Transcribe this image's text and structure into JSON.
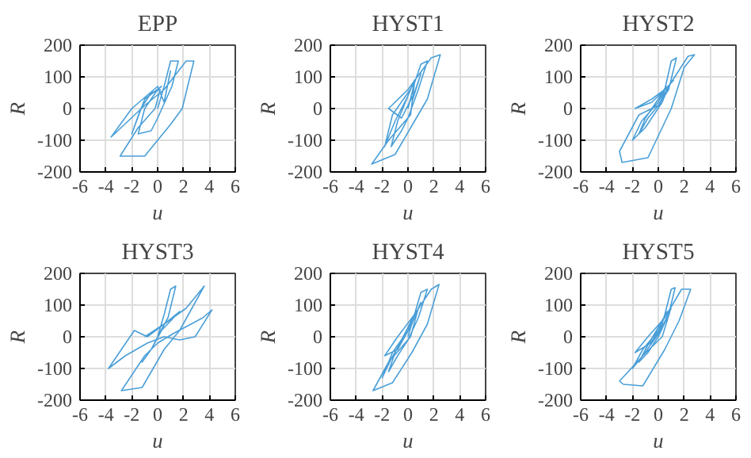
{
  "chart_data": [
    {
      "type": "line",
      "title": "EPP",
      "xlabel": "u",
      "ylabel": "R",
      "xlim": [
        -6,
        6
      ],
      "ylim": [
        -200,
        200
      ],
      "xticks": [
        -6,
        -4,
        -2,
        0,
        2,
        4,
        6
      ],
      "yticks": [
        -200,
        -100,
        0,
        100,
        200
      ],
      "grid": true,
      "series": [
        {
          "color": "#4a9fd8",
          "x": [
            0,
            0.5,
            1,
            1.6,
            1.1,
            0,
            -0.5,
            -1.5,
            -1,
            0,
            0.3,
            -1,
            -2,
            -1.3,
            -0.5,
            0.2,
            -0.2,
            -1.5,
            -2.9,
            -1,
            1,
            1.9,
            2.8,
            2.2,
            0.5,
            -1,
            -3.6,
            -2,
            0,
            0.5,
            1
          ],
          "values": [
            0,
            70,
            150,
            150,
            70,
            -30,
            -70,
            -80,
            0,
            60,
            70,
            30,
            -80,
            0,
            50,
            60,
            0,
            -60,
            -150,
            -150,
            -50,
            0,
            150,
            150,
            60,
            10,
            -90,
            0,
            70,
            20,
            120
          ]
        }
      ]
    },
    {
      "type": "line",
      "title": "HYST1",
      "xlabel": "u",
      "ylabel": "R",
      "xlim": [
        -6,
        6
      ],
      "ylim": [
        -200,
        200
      ],
      "xticks": [
        -6,
        -4,
        -2,
        0,
        2,
        4,
        6
      ],
      "yticks": [
        -200,
        -100,
        0,
        100,
        200
      ],
      "grid": true,
      "series": [
        {
          "color": "#4a9fd8",
          "x": [
            0,
            0.5,
            1,
            1.5,
            0.8,
            0,
            -0.5,
            -1.3,
            -0.8,
            0,
            0.5,
            0,
            -1,
            -1.8,
            -1.2,
            0,
            0.5,
            0.2,
            -1.5,
            -2.8,
            -1,
            0.5,
            1.5,
            2.5,
            1.8,
            0,
            -1.5,
            -0.5,
            0.5,
            1,
            0.3
          ],
          "values": [
            0,
            80,
            140,
            150,
            60,
            -30,
            -70,
            -120,
            -40,
            40,
            90,
            40,
            -40,
            -120,
            -20,
            50,
            80,
            -20,
            -100,
            -175,
            -145,
            -40,
            30,
            170,
            160,
            60,
            0,
            -30,
            50,
            110,
            20
          ]
        }
      ]
    },
    {
      "type": "line",
      "title": "HYST2",
      "xlabel": "u",
      "ylabel": "R",
      "xlim": [
        -6,
        6
      ],
      "ylim": [
        -200,
        200
      ],
      "xticks": [
        -6,
        -4,
        -2,
        0,
        2,
        4,
        6
      ],
      "yticks": [
        -200,
        -100,
        0,
        100,
        200
      ],
      "grid": true,
      "series": [
        {
          "color": "#4a9fd8",
          "x": [
            0,
            0.5,
            1,
            1.4,
            0.8,
            0,
            -0.8,
            -1.5,
            -1,
            0,
            0.6,
            0,
            -1.3,
            -2,
            -1,
            0.3,
            0.8,
            0,
            -1.5,
            -3,
            -2.8,
            -0.8,
            1,
            2,
            2.8,
            2.3,
            0.8,
            -0.5,
            -1.8,
            -0.5,
            0.5,
            1.2
          ],
          "values": [
            0,
            60,
            150,
            160,
            60,
            10,
            -30,
            -80,
            -30,
            30,
            70,
            20,
            -40,
            -100,
            -60,
            20,
            70,
            10,
            -20,
            -135,
            -170,
            -155,
            0,
            130,
            170,
            165,
            70,
            20,
            0,
            30,
            60,
            90
          ]
        }
      ]
    },
    {
      "type": "line",
      "title": "HYST3",
      "xlabel": "u",
      "ylabel": "R",
      "xlim": [
        -6,
        6
      ],
      "ylim": [
        -200,
        200
      ],
      "xticks": [
        -6,
        -4,
        -2,
        0,
        2,
        4,
        6
      ],
      "yticks": [
        -200,
        -100,
        0,
        100,
        200
      ],
      "grid": true,
      "series": [
        {
          "color": "#4a9fd8",
          "x": [
            0,
            0.5,
            1,
            1.4,
            0.8,
            0,
            -0.5,
            -1.2,
            -0.5,
            0.3,
            1.7,
            0.5,
            -0.8,
            -1.8,
            -3.8,
            -2.5,
            -0.8,
            0.5,
            1.7,
            2.9,
            4.2,
            3.5,
            1.2,
            0,
            -1,
            -2.8,
            -1.2,
            0.5,
            1.7,
            3.6,
            2.2,
            0.5,
            -1
          ],
          "values": [
            0,
            70,
            150,
            160,
            60,
            0,
            -40,
            -80,
            -40,
            20,
            80,
            40,
            0,
            20,
            -100,
            -60,
            -20,
            0,
            -10,
            0,
            85,
            60,
            10,
            -20,
            -60,
            -170,
            -160,
            -40,
            20,
            160,
            90,
            40,
            0
          ]
        }
      ]
    },
    {
      "type": "line",
      "title": "HYST4",
      "xlabel": "u",
      "ylabel": "R",
      "xlim": [
        -6,
        6
      ],
      "ylim": [
        -200,
        200
      ],
      "xticks": [
        -6,
        -4,
        -2,
        0,
        2,
        4,
        6
      ],
      "yticks": [
        -200,
        -100,
        0,
        100,
        200
      ],
      "grid": true,
      "series": [
        {
          "color": "#4a9fd8",
          "x": [
            0,
            0.5,
            1,
            1.5,
            0.8,
            0,
            -0.8,
            -1.5,
            -1,
            0,
            0.6,
            0,
            -1.2,
            -2,
            -1.3,
            0,
            0.8,
            0.2,
            -1.5,
            -2.7,
            -1.2,
            0.3,
            1.5,
            2.4,
            1.8,
            0.5,
            -0.8,
            -1.8,
            -0.8,
            0.3,
            1
          ],
          "values": [
            0,
            70,
            140,
            150,
            60,
            -10,
            -60,
            -110,
            -50,
            30,
            80,
            20,
            -50,
            -130,
            -70,
            20,
            90,
            0,
            -80,
            -170,
            -145,
            -50,
            40,
            165,
            150,
            70,
            0,
            -60,
            -40,
            40,
            110
          ]
        }
      ]
    },
    {
      "type": "line",
      "title": "HYST5",
      "xlabel": "u",
      "ylabel": "R",
      "xlim": [
        -6,
        6
      ],
      "ylim": [
        -200,
        200
      ],
      "xticks": [
        -6,
        -4,
        -2,
        0,
        2,
        4,
        6
      ],
      "yticks": [
        -200,
        -100,
        0,
        100,
        200
      ],
      "grid": true,
      "series": [
        {
          "color": "#4a9fd8",
          "x": [
            0,
            0.5,
            1,
            1.3,
            0.8,
            0,
            -0.8,
            -1.5,
            -1,
            0,
            0.7,
            0,
            -1.2,
            -2,
            -1.2,
            0.2,
            0.9,
            0.3,
            -1.2,
            -3,
            -2.7,
            -1.2,
            0.5,
            1.6,
            2.5,
            1.8,
            0.5,
            -0.8,
            -1.8,
            -0.6,
            0.4,
            1
          ],
          "values": [
            0,
            70,
            150,
            155,
            70,
            0,
            -50,
            -80,
            -40,
            30,
            80,
            20,
            -40,
            -100,
            -60,
            20,
            80,
            0,
            -60,
            -140,
            -150,
            -155,
            -40,
            50,
            150,
            150,
            60,
            0,
            -50,
            -20,
            40,
            90
          ]
        }
      ]
    }
  ]
}
